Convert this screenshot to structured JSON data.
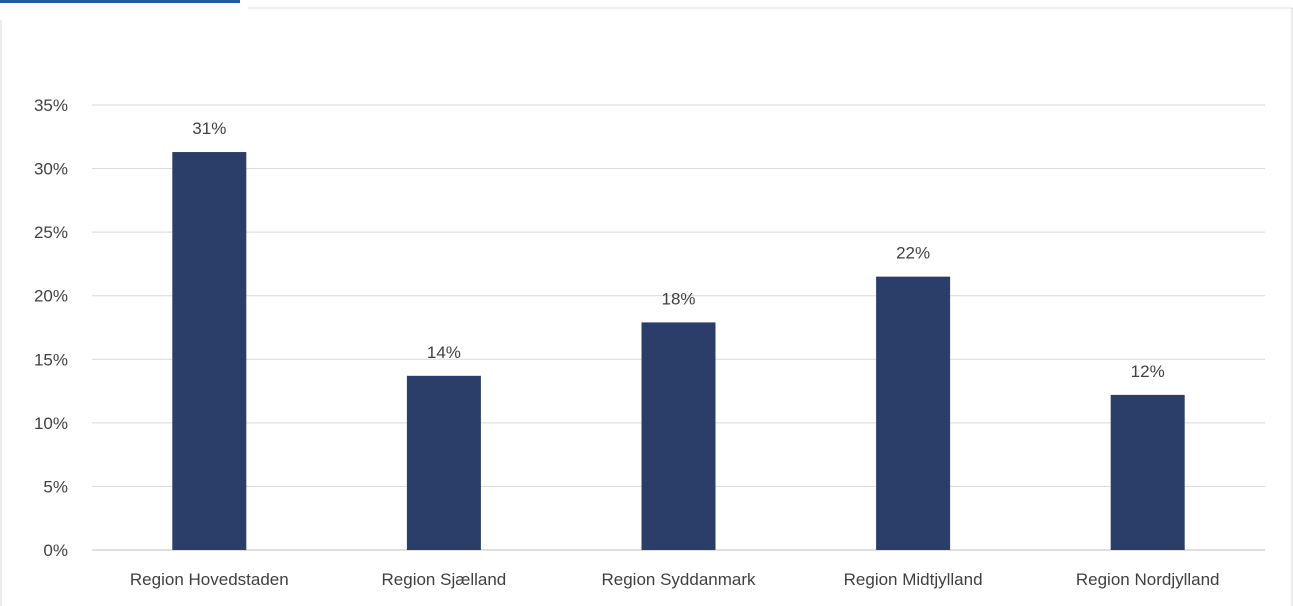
{
  "chart_data": {
    "type": "bar",
    "categories": [
      "Region Hovedstaden",
      "Region Sjælland",
      "Region Syddanmark",
      "Region Midtjylland",
      "Region Nordjylland"
    ],
    "values": [
      31.3,
      13.7,
      17.9,
      21.5,
      12.2
    ],
    "data_labels": [
      "31%",
      "14%",
      "18%",
      "22%",
      "12%"
    ],
    "y_ticks": [
      "0%",
      "5%",
      "10%",
      "15%",
      "20%",
      "25%",
      "30%",
      "35%"
    ],
    "y_tick_values": [
      0,
      5,
      10,
      15,
      20,
      25,
      30,
      35
    ],
    "ylim": [
      0,
      35
    ],
    "grid": true,
    "legend": "none",
    "title": "",
    "xlabel": "",
    "ylabel": "",
    "bar_color": "#2b3d69",
    "cropped_heading_color": "#1f5aa6"
  }
}
